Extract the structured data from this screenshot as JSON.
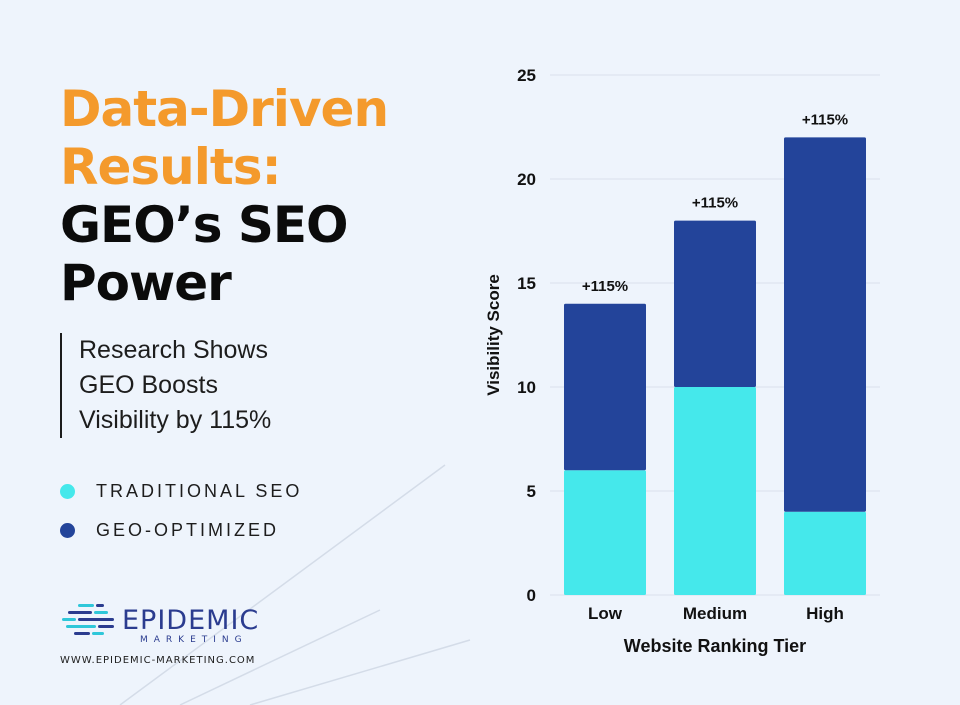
{
  "headline": {
    "line1": "Data-Driven",
    "line2": "Results:",
    "line3": "GEO’s SEO",
    "line4": "Power"
  },
  "subtitle": {
    "line1": "Research Shows",
    "line2": "GEO Boosts",
    "line3": "Visibility by 115%"
  },
  "legend": {
    "items": [
      {
        "label": "TRADITIONAL SEO",
        "color": "#45e8eb"
      },
      {
        "label": "GEO-OPTIMIZED",
        "color": "#23449a"
      }
    ]
  },
  "brand": {
    "name": "EPIDEMIC",
    "sub": "MARKETING",
    "website": "WWW.EPIDEMIC-MARKETING.COM"
  },
  "chart_data": {
    "type": "bar",
    "stacked": true,
    "categories": [
      "Low",
      "Medium",
      "High"
    ],
    "series": [
      {
        "name": "TRADITIONAL SEO",
        "values": [
          6,
          10,
          4
        ],
        "color": "#45e8eb"
      },
      {
        "name": "GEO-OPTIMIZED",
        "values": [
          8,
          8,
          18
        ],
        "color": "#23449a"
      }
    ],
    "annotations": [
      "+115%",
      "+115%",
      "+115%"
    ],
    "xlabel": "Website Ranking Tier",
    "ylabel": "Visibility Score",
    "ylim": [
      0,
      25
    ],
    "yticks": [
      0,
      5,
      10,
      15,
      20,
      25
    ],
    "grid": true
  }
}
